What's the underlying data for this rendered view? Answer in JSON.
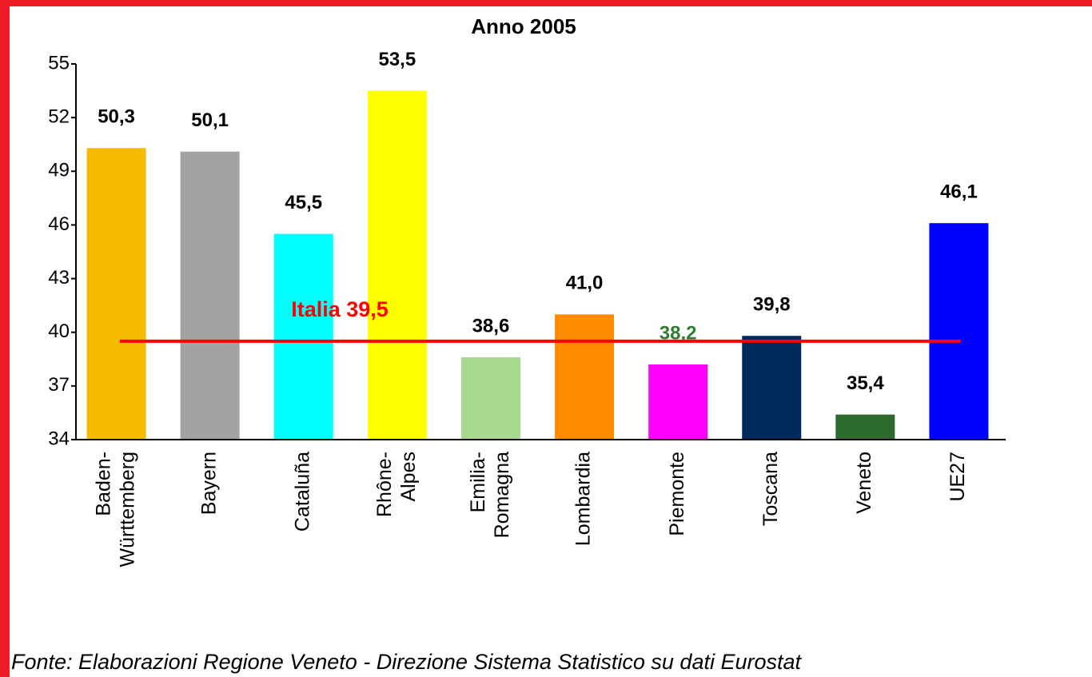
{
  "chart_data": {
    "type": "bar",
    "title": "Anno 2005",
    "categories": [
      "Baden-Württemberg",
      "Bayern",
      "Cataluña",
      "Rhône-Alpes",
      "Emilia-Romagna",
      "Lombardia",
      "Piemonte",
      "Toscana",
      "Veneto",
      "UE27"
    ],
    "values": [
      50.3,
      50.1,
      45.5,
      53.5,
      38.6,
      41.0,
      38.2,
      39.8,
      35.4,
      46.1
    ],
    "value_labels": [
      "50,3",
      "50,1",
      "45,5",
      "53,5",
      "38,6",
      "41,0",
      "38,2",
      "39,8",
      "35,4",
      "46,1"
    ],
    "colors": [
      "#f9bb00",
      "#a3a3a3",
      "#00ffff",
      "#ffff00",
      "#a6d88e",
      "#ff8c00",
      "#ff00ff",
      "#002a5c",
      "#2d6a2d",
      "#0000ff"
    ],
    "value_label_colors": [
      "#000000",
      "#000000",
      "#000000",
      "#000000",
      "#000000",
      "#000000",
      "#2e7d32",
      "#000000",
      "#000000",
      "#000000"
    ],
    "ylim": [
      34,
      55
    ],
    "yticks": [
      34,
      37,
      40,
      43,
      46,
      49,
      52,
      55
    ],
    "reference_line": {
      "value": 39.5,
      "label": "Italia 39,5",
      "color": "#ff0000"
    },
    "source": "Fonte: Elaborazioni Regione Veneto - Direzione Sistema Statistico su dati Eurostat"
  }
}
